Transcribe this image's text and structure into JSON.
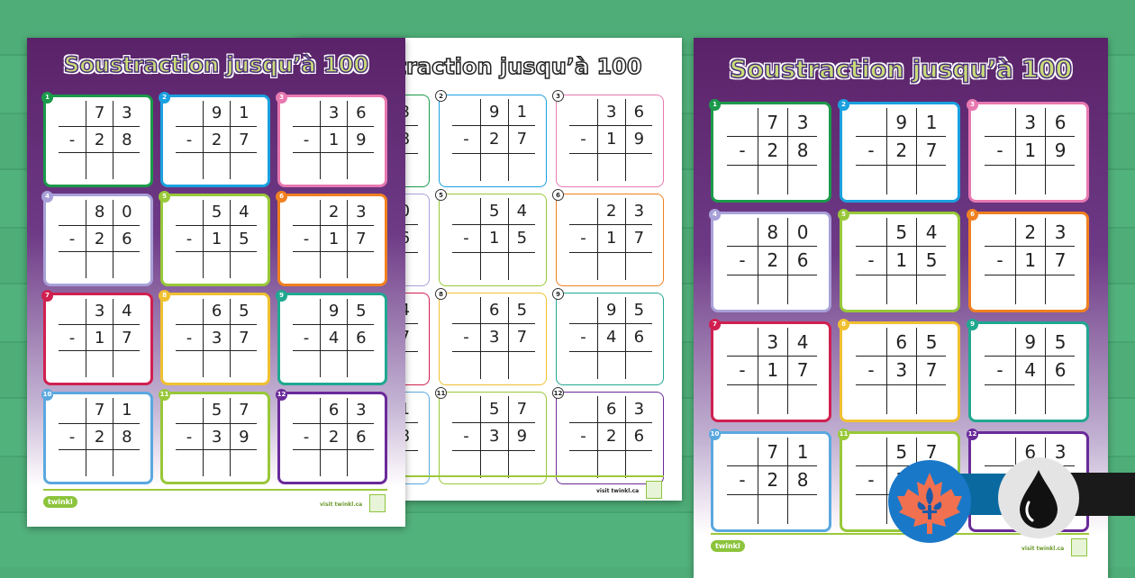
{
  "title": "Soustraction jusqu’à 100",
  "footer": {
    "visit": "visit twinkl.ca",
    "logo": "twinkl"
  },
  "problems": [
    {
      "n": "1",
      "top": [
        "7",
        "3"
      ],
      "bottom": [
        "2",
        "8"
      ],
      "sign": "-",
      "color": "#1a9a4a"
    },
    {
      "n": "2",
      "top": [
        "9",
        "1"
      ],
      "bottom": [
        "2",
        "7"
      ],
      "sign": "-",
      "color": "#1aa0e0"
    },
    {
      "n": "3",
      "top": [
        "3",
        "6"
      ],
      "bottom": [
        "1",
        "9"
      ],
      "sign": "-",
      "color": "#e878b0"
    },
    {
      "n": "4",
      "top": [
        "8",
        "0"
      ],
      "bottom": [
        "2",
        "6"
      ],
      "sign": "-",
      "color": "#a8a0d8"
    },
    {
      "n": "5",
      "top": [
        "5",
        "4"
      ],
      "bottom": [
        "1",
        "5"
      ],
      "sign": "-",
      "color": "#98c838"
    },
    {
      "n": "6",
      "top": [
        "2",
        "3"
      ],
      "bottom": [
        "1",
        "7"
      ],
      "sign": "-",
      "color": "#f08020"
    },
    {
      "n": "7",
      "top": [
        "3",
        "4"
      ],
      "bottom": [
        "1",
        "7"
      ],
      "sign": "-",
      "color": "#d02050"
    },
    {
      "n": "8",
      "top": [
        "6",
        "5"
      ],
      "bottom": [
        "3",
        "7"
      ],
      "sign": "-",
      "color": "#f0c030"
    },
    {
      "n": "9",
      "top": [
        "9",
        "5"
      ],
      "bottom": [
        "4",
        "6"
      ],
      "sign": "-",
      "color": "#20a890"
    },
    {
      "n": "10",
      "top": [
        "7",
        "1"
      ],
      "bottom": [
        "2",
        "8"
      ],
      "sign": "-",
      "color": "#5aa8e0"
    },
    {
      "n": "11",
      "top": [
        "5",
        "7"
      ],
      "bottom": [
        "3",
        "9"
      ],
      "sign": "-",
      "color": "#98c838"
    },
    {
      "n": "12",
      "top": [
        "6",
        "3"
      ],
      "bottom": [
        "2",
        "6"
      ],
      "sign": "-",
      "color": "#6a2a9a"
    }
  ],
  "badges": {
    "region": {
      "icon": "quebec-maple-fleur-de-lis-icon",
      "color": "#1a78c8",
      "bar": "#0a6aa0"
    },
    "ink": {
      "icon": "ink-drop-icon",
      "color": "#e4e4e4",
      "bar": "#1a1a1a"
    }
  }
}
